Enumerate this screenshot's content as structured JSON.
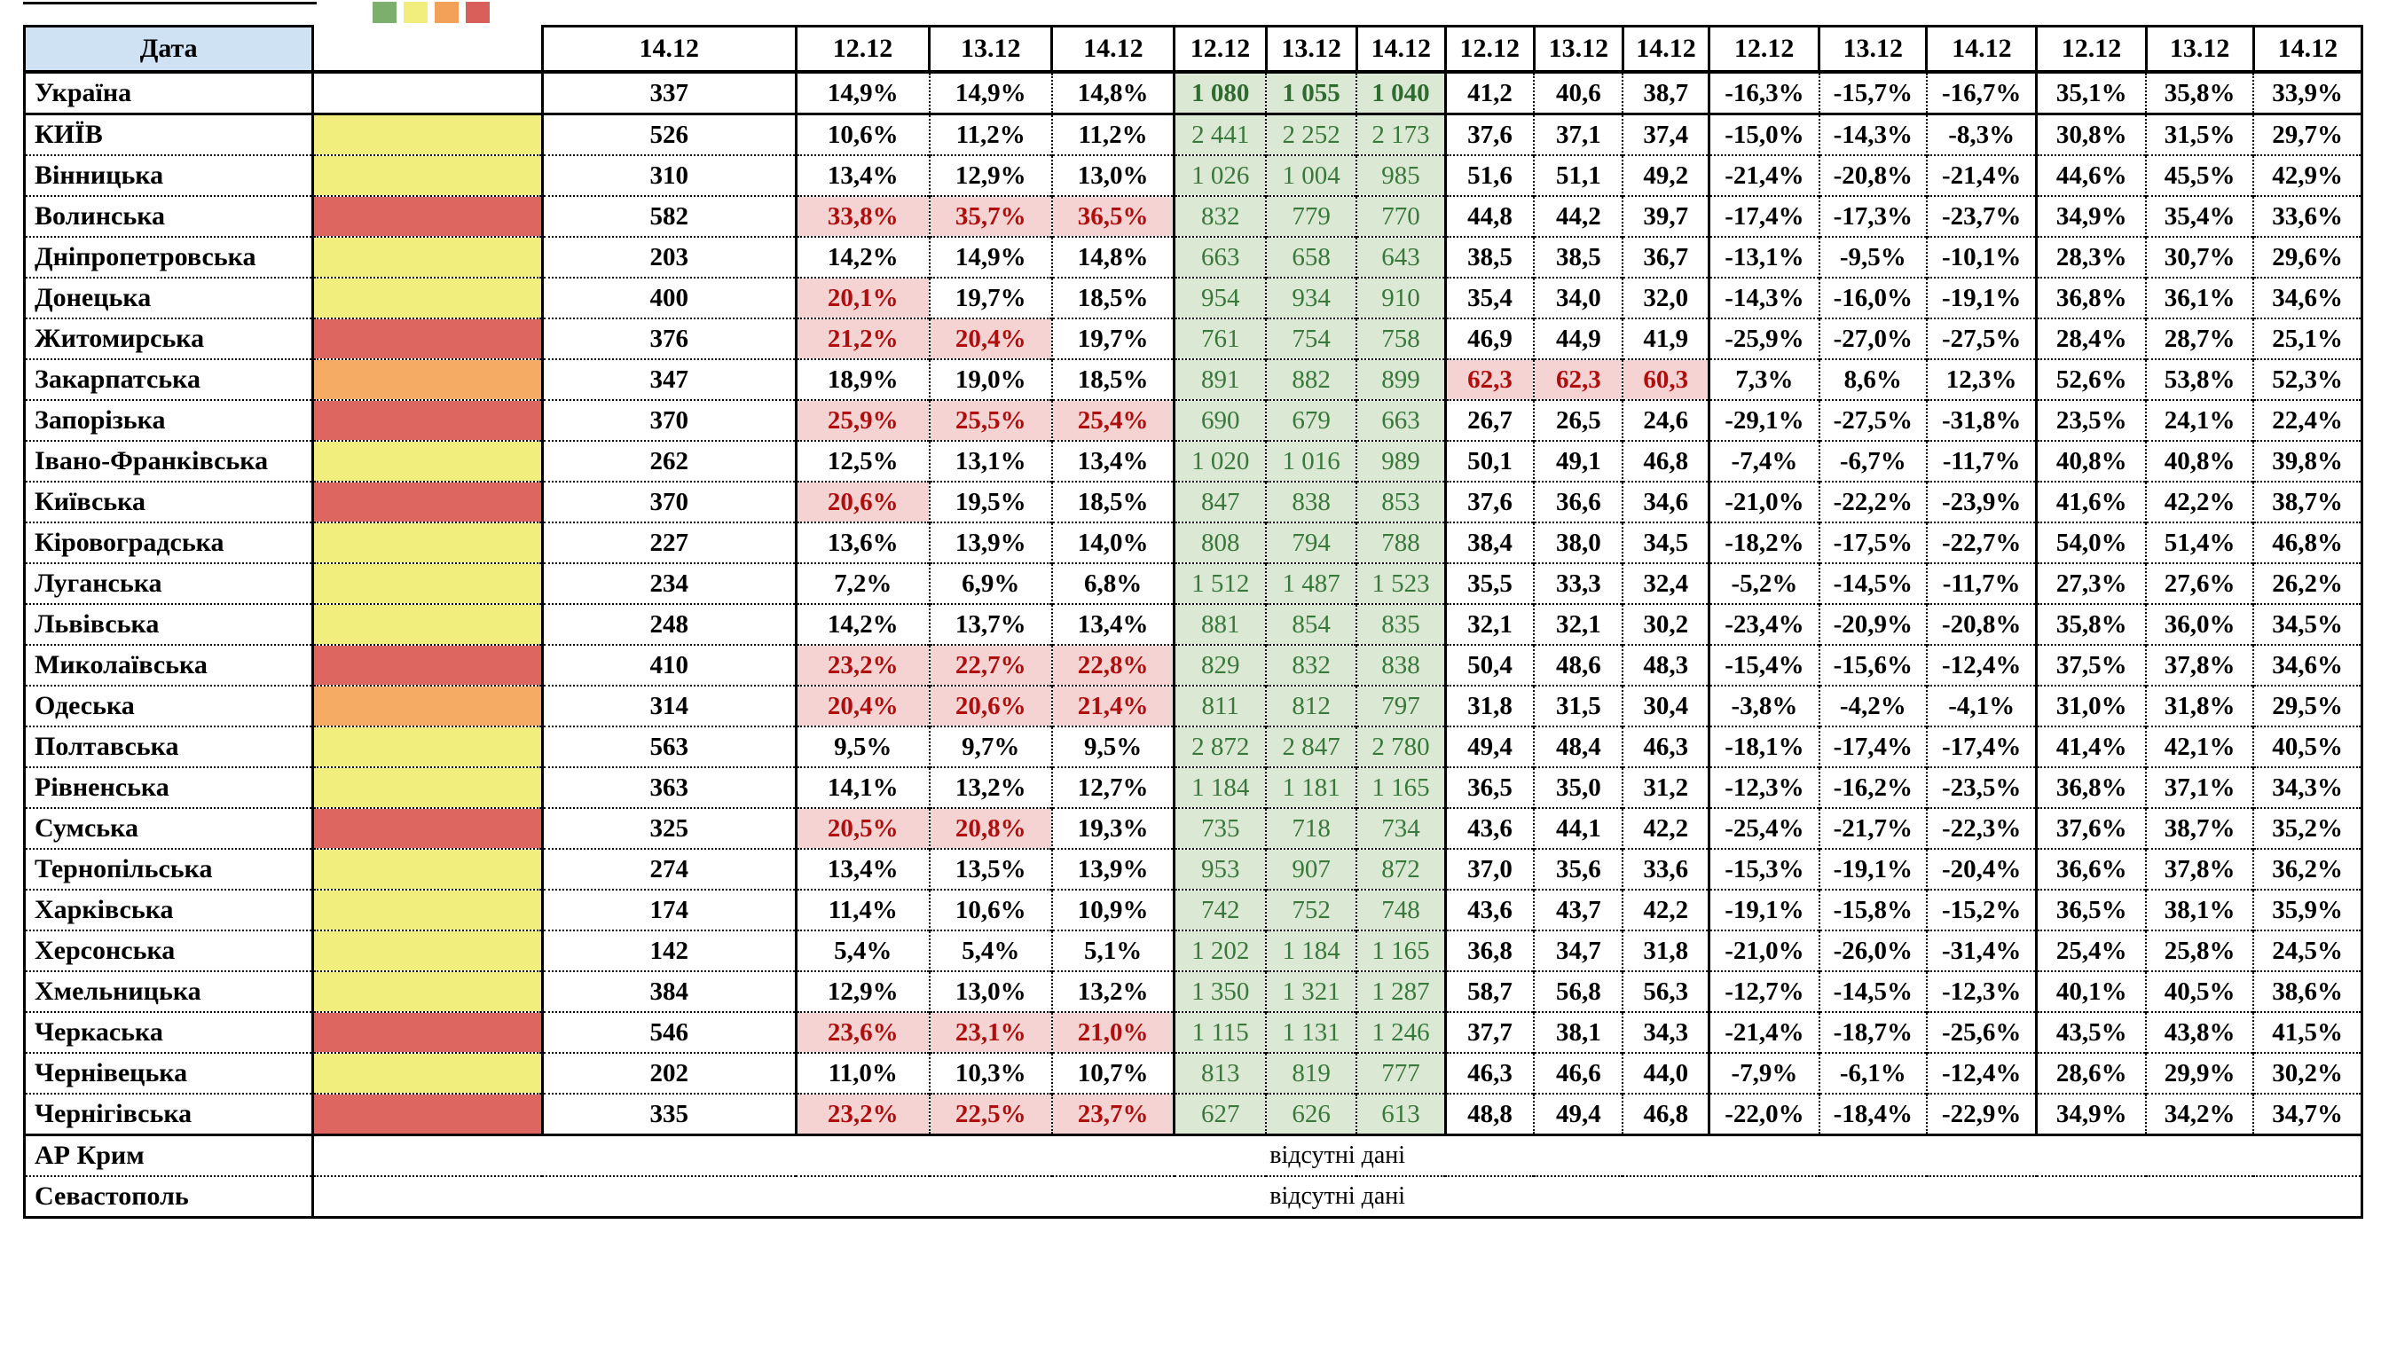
{
  "header": {
    "date_label": "Дата",
    "count_col_date": "14.12",
    "group_dates": [
      "12.12",
      "13.12",
      "14.12"
    ],
    "group_count": 5
  },
  "legend_colors": [
    "#7cae6d",
    "#f1ee7e",
    "#f3a058",
    "#d95f5a"
  ],
  "colors": {
    "none": "#ffffff",
    "yellow": "#f1ee7e",
    "orange": "#f5ab63",
    "red": "#dd6760",
    "green_bg": "#dbe8d4",
    "green_text": "#38783a",
    "pink_bg": "#f6d3d3",
    "pink_text": "#b00d0d",
    "header_blue": "#cfe2f3"
  },
  "no_data_text": "відсутні дані",
  "no_data_rows": [
    "АР Крим",
    "Севастополь"
  ],
  "rows": [
    {
      "name": "Україна",
      "ind": "none",
      "emph": true,
      "count": "337",
      "pct": [
        "14,9%",
        "14,9%",
        "14,8%"
      ],
      "pct_hl": [
        0,
        0,
        0
      ],
      "green": [
        "1 080",
        "1 055",
        "1 040"
      ],
      "num": [
        "41,2",
        "40,6",
        "38,7"
      ],
      "num_hl": [
        0,
        0,
        0
      ],
      "neg": [
        "-16,3%",
        "-15,7%",
        "-16,7%"
      ],
      "last": [
        "35,1%",
        "35,8%",
        "33,9%"
      ]
    },
    {
      "name": "КИЇВ",
      "ind": "yellow",
      "count": "526",
      "pct": [
        "10,6%",
        "11,2%",
        "11,2%"
      ],
      "pct_hl": [
        0,
        0,
        0
      ],
      "green": [
        "2 441",
        "2 252",
        "2 173"
      ],
      "num": [
        "37,6",
        "37,1",
        "37,4"
      ],
      "num_hl": [
        0,
        0,
        0
      ],
      "neg": [
        "-15,0%",
        "-14,3%",
        "-8,3%"
      ],
      "last": [
        "30,8%",
        "31,5%",
        "29,7%"
      ]
    },
    {
      "name": "Вінницька",
      "ind": "yellow",
      "count": "310",
      "pct": [
        "13,4%",
        "12,9%",
        "13,0%"
      ],
      "pct_hl": [
        0,
        0,
        0
      ],
      "green": [
        "1 026",
        "1 004",
        "985"
      ],
      "num": [
        "51,6",
        "51,1",
        "49,2"
      ],
      "num_hl": [
        0,
        0,
        0
      ],
      "neg": [
        "-21,4%",
        "-20,8%",
        "-21,4%"
      ],
      "last": [
        "44,6%",
        "45,5%",
        "42,9%"
      ]
    },
    {
      "name": "Волинська",
      "ind": "red",
      "count": "582",
      "pct": [
        "33,8%",
        "35,7%",
        "36,5%"
      ],
      "pct_hl": [
        1,
        1,
        1
      ],
      "green": [
        "832",
        "779",
        "770"
      ],
      "num": [
        "44,8",
        "44,2",
        "39,7"
      ],
      "num_hl": [
        0,
        0,
        0
      ],
      "neg": [
        "-17,4%",
        "-17,3%",
        "-23,7%"
      ],
      "last": [
        "34,9%",
        "35,4%",
        "33,6%"
      ]
    },
    {
      "name": "Дніпропетровська",
      "ind": "yellow",
      "count": "203",
      "pct": [
        "14,2%",
        "14,9%",
        "14,8%"
      ],
      "pct_hl": [
        0,
        0,
        0
      ],
      "green": [
        "663",
        "658",
        "643"
      ],
      "num": [
        "38,5",
        "38,5",
        "36,7"
      ],
      "num_hl": [
        0,
        0,
        0
      ],
      "neg": [
        "-13,1%",
        "-9,5%",
        "-10,1%"
      ],
      "last": [
        "28,3%",
        "30,7%",
        "29,6%"
      ]
    },
    {
      "name": "Донецька",
      "ind": "yellow",
      "count": "400",
      "pct": [
        "20,1%",
        "19,7%",
        "18,5%"
      ],
      "pct_hl": [
        1,
        0,
        0
      ],
      "green": [
        "954",
        "934",
        "910"
      ],
      "num": [
        "35,4",
        "34,0",
        "32,0"
      ],
      "num_hl": [
        0,
        0,
        0
      ],
      "neg": [
        "-14,3%",
        "-16,0%",
        "-19,1%"
      ],
      "last": [
        "36,8%",
        "36,1%",
        "34,6%"
      ]
    },
    {
      "name": "Житомирська",
      "ind": "red",
      "count": "376",
      "pct": [
        "21,2%",
        "20,4%",
        "19,7%"
      ],
      "pct_hl": [
        1,
        1,
        0
      ],
      "green": [
        "761",
        "754",
        "758"
      ],
      "num": [
        "46,9",
        "44,9",
        "41,9"
      ],
      "num_hl": [
        0,
        0,
        0
      ],
      "neg": [
        "-25,9%",
        "-27,0%",
        "-27,5%"
      ],
      "last": [
        "28,4%",
        "28,7%",
        "25,1%"
      ]
    },
    {
      "name": "Закарпатська",
      "ind": "orange",
      "count": "347",
      "pct": [
        "18,9%",
        "19,0%",
        "18,5%"
      ],
      "pct_hl": [
        0,
        0,
        0
      ],
      "green": [
        "891",
        "882",
        "899"
      ],
      "num": [
        "62,3",
        "62,3",
        "60,3"
      ],
      "num_hl": [
        1,
        1,
        1
      ],
      "neg": [
        "7,3%",
        "8,6%",
        "12,3%"
      ],
      "last": [
        "52,6%",
        "53,8%",
        "52,3%"
      ]
    },
    {
      "name": "Запорізька",
      "ind": "red",
      "count": "370",
      "pct": [
        "25,9%",
        "25,5%",
        "25,4%"
      ],
      "pct_hl": [
        1,
        1,
        1
      ],
      "green": [
        "690",
        "679",
        "663"
      ],
      "num": [
        "26,7",
        "26,5",
        "24,6"
      ],
      "num_hl": [
        0,
        0,
        0
      ],
      "neg": [
        "-29,1%",
        "-27,5%",
        "-31,8%"
      ],
      "last": [
        "23,5%",
        "24,1%",
        "22,4%"
      ]
    },
    {
      "name": "Івано-Франківська",
      "ind": "yellow",
      "count": "262",
      "pct": [
        "12,5%",
        "13,1%",
        "13,4%"
      ],
      "pct_hl": [
        0,
        0,
        0
      ],
      "green": [
        "1 020",
        "1 016",
        "989"
      ],
      "num": [
        "50,1",
        "49,1",
        "46,8"
      ],
      "num_hl": [
        0,
        0,
        0
      ],
      "neg": [
        "-7,4%",
        "-6,7%",
        "-11,7%"
      ],
      "last": [
        "40,8%",
        "40,8%",
        "39,8%"
      ]
    },
    {
      "name": "Київська",
      "ind": "red",
      "count": "370",
      "pct": [
        "20,6%",
        "19,5%",
        "18,5%"
      ],
      "pct_hl": [
        1,
        0,
        0
      ],
      "green": [
        "847",
        "838",
        "853"
      ],
      "num": [
        "37,6",
        "36,6",
        "34,6"
      ],
      "num_hl": [
        0,
        0,
        0
      ],
      "neg": [
        "-21,0%",
        "-22,2%",
        "-23,9%"
      ],
      "last": [
        "41,6%",
        "42,2%",
        "38,7%"
      ]
    },
    {
      "name": "Кіровоградська",
      "ind": "yellow",
      "count": "227",
      "pct": [
        "13,6%",
        "13,9%",
        "14,0%"
      ],
      "pct_hl": [
        0,
        0,
        0
      ],
      "green": [
        "808",
        "794",
        "788"
      ],
      "num": [
        "38,4",
        "38,0",
        "34,5"
      ],
      "num_hl": [
        0,
        0,
        0
      ],
      "neg": [
        "-18,2%",
        "-17,5%",
        "-22,7%"
      ],
      "last": [
        "54,0%",
        "51,4%",
        "46,8%"
      ]
    },
    {
      "name": "Луганська",
      "ind": "yellow",
      "count": "234",
      "pct": [
        "7,2%",
        "6,9%",
        "6,8%"
      ],
      "pct_hl": [
        0,
        0,
        0
      ],
      "green": [
        "1 512",
        "1 487",
        "1 523"
      ],
      "num": [
        "35,5",
        "33,3",
        "32,4"
      ],
      "num_hl": [
        0,
        0,
        0
      ],
      "neg": [
        "-5,2%",
        "-14,5%",
        "-11,7%"
      ],
      "last": [
        "27,3%",
        "27,6%",
        "26,2%"
      ]
    },
    {
      "name": "Львівська",
      "ind": "yellow",
      "count": "248",
      "pct": [
        "14,2%",
        "13,7%",
        "13,4%"
      ],
      "pct_hl": [
        0,
        0,
        0
      ],
      "green": [
        "881",
        "854",
        "835"
      ],
      "num": [
        "32,1",
        "32,1",
        "30,2"
      ],
      "num_hl": [
        0,
        0,
        0
      ],
      "neg": [
        "-23,4%",
        "-20,9%",
        "-20,8%"
      ],
      "last": [
        "35,8%",
        "36,0%",
        "34,5%"
      ]
    },
    {
      "name": "Миколаївська",
      "ind": "red",
      "count": "410",
      "pct": [
        "23,2%",
        "22,7%",
        "22,8%"
      ],
      "pct_hl": [
        1,
        1,
        1
      ],
      "green": [
        "829",
        "832",
        "838"
      ],
      "num": [
        "50,4",
        "48,6",
        "48,3"
      ],
      "num_hl": [
        0,
        0,
        0
      ],
      "neg": [
        "-15,4%",
        "-15,6%",
        "-12,4%"
      ],
      "last": [
        "37,5%",
        "37,8%",
        "34,6%"
      ]
    },
    {
      "name": "Одеська",
      "ind": "orange",
      "count": "314",
      "pct": [
        "20,4%",
        "20,6%",
        "21,4%"
      ],
      "pct_hl": [
        1,
        1,
        1
      ],
      "green": [
        "811",
        "812",
        "797"
      ],
      "num": [
        "31,8",
        "31,5",
        "30,4"
      ],
      "num_hl": [
        0,
        0,
        0
      ],
      "neg": [
        "-3,8%",
        "-4,2%",
        "-4,1%"
      ],
      "last": [
        "31,0%",
        "31,8%",
        "29,5%"
      ]
    },
    {
      "name": "Полтавська",
      "ind": "yellow",
      "count": "563",
      "pct": [
        "9,5%",
        "9,7%",
        "9,5%"
      ],
      "pct_hl": [
        0,
        0,
        0
      ],
      "green": [
        "2 872",
        "2 847",
        "2 780"
      ],
      "num": [
        "49,4",
        "48,4",
        "46,3"
      ],
      "num_hl": [
        0,
        0,
        0
      ],
      "neg": [
        "-18,1%",
        "-17,4%",
        "-17,4%"
      ],
      "last": [
        "41,4%",
        "42,1%",
        "40,5%"
      ]
    },
    {
      "name": "Рівненська",
      "ind": "yellow",
      "count": "363",
      "pct": [
        "14,1%",
        "13,2%",
        "12,7%"
      ],
      "pct_hl": [
        0,
        0,
        0
      ],
      "green": [
        "1 184",
        "1 181",
        "1 165"
      ],
      "num": [
        "36,5",
        "35,0",
        "31,2"
      ],
      "num_hl": [
        0,
        0,
        0
      ],
      "neg": [
        "-12,3%",
        "-16,2%",
        "-23,5%"
      ],
      "last": [
        "36,8%",
        "37,1%",
        "34,3%"
      ]
    },
    {
      "name": "Сумська",
      "ind": "red",
      "count": "325",
      "pct": [
        "20,5%",
        "20,8%",
        "19,3%"
      ],
      "pct_hl": [
        1,
        1,
        0
      ],
      "green": [
        "735",
        "718",
        "734"
      ],
      "num": [
        "43,6",
        "44,1",
        "42,2"
      ],
      "num_hl": [
        0,
        0,
        0
      ],
      "neg": [
        "-25,4%",
        "-21,7%",
        "-22,3%"
      ],
      "last": [
        "37,6%",
        "38,7%",
        "35,2%"
      ]
    },
    {
      "name": "Тернопільська",
      "ind": "yellow",
      "count": "274",
      "pct": [
        "13,4%",
        "13,5%",
        "13,9%"
      ],
      "pct_hl": [
        0,
        0,
        0
      ],
      "green": [
        "953",
        "907",
        "872"
      ],
      "num": [
        "37,0",
        "35,6",
        "33,6"
      ],
      "num_hl": [
        0,
        0,
        0
      ],
      "neg": [
        "-15,3%",
        "-19,1%",
        "-20,4%"
      ],
      "last": [
        "36,6%",
        "37,8%",
        "36,2%"
      ]
    },
    {
      "name": "Харківська",
      "ind": "yellow",
      "count": "174",
      "pct": [
        "11,4%",
        "10,6%",
        "10,9%"
      ],
      "pct_hl": [
        0,
        0,
        0
      ],
      "green": [
        "742",
        "752",
        "748"
      ],
      "num": [
        "43,6",
        "43,7",
        "42,2"
      ],
      "num_hl": [
        0,
        0,
        0
      ],
      "neg": [
        "-19,1%",
        "-15,8%",
        "-15,2%"
      ],
      "last": [
        "36,5%",
        "38,1%",
        "35,9%"
      ]
    },
    {
      "name": "Херсонська",
      "ind": "yellow",
      "count": "142",
      "pct": [
        "5,4%",
        "5,4%",
        "5,1%"
      ],
      "pct_hl": [
        0,
        0,
        0
      ],
      "green": [
        "1 202",
        "1 184",
        "1 165"
      ],
      "num": [
        "36,8",
        "34,7",
        "31,8"
      ],
      "num_hl": [
        0,
        0,
        0
      ],
      "neg": [
        "-21,0%",
        "-26,0%",
        "-31,4%"
      ],
      "last": [
        "25,4%",
        "25,8%",
        "24,5%"
      ]
    },
    {
      "name": "Хмельницька",
      "ind": "yellow",
      "count": "384",
      "pct": [
        "12,9%",
        "13,0%",
        "13,2%"
      ],
      "pct_hl": [
        0,
        0,
        0
      ],
      "green": [
        "1 350",
        "1 321",
        "1 287"
      ],
      "num": [
        "58,7",
        "56,8",
        "56,3"
      ],
      "num_hl": [
        0,
        0,
        0
      ],
      "neg": [
        "-12,7%",
        "-14,5%",
        "-12,3%"
      ],
      "last": [
        "40,1%",
        "40,5%",
        "38,6%"
      ]
    },
    {
      "name": "Черкаська",
      "ind": "red",
      "count": "546",
      "pct": [
        "23,6%",
        "23,1%",
        "21,0%"
      ],
      "pct_hl": [
        1,
        1,
        1
      ],
      "green": [
        "1 115",
        "1 131",
        "1 246"
      ],
      "num": [
        "37,7",
        "38,1",
        "34,3"
      ],
      "num_hl": [
        0,
        0,
        0
      ],
      "neg": [
        "-21,4%",
        "-18,7%",
        "-25,6%"
      ],
      "last": [
        "43,5%",
        "43,8%",
        "41,5%"
      ]
    },
    {
      "name": "Чернівецька",
      "ind": "yellow",
      "count": "202",
      "pct": [
        "11,0%",
        "10,3%",
        "10,7%"
      ],
      "pct_hl": [
        0,
        0,
        0
      ],
      "green": [
        "813",
        "819",
        "777"
      ],
      "num": [
        "46,3",
        "46,6",
        "44,0"
      ],
      "num_hl": [
        0,
        0,
        0
      ],
      "neg": [
        "-7,9%",
        "-6,1%",
        "-12,4%"
      ],
      "last": [
        "28,6%",
        "29,9%",
        "30,2%"
      ]
    },
    {
      "name": "Чернігівська",
      "ind": "red",
      "count": "335",
      "pct": [
        "23,2%",
        "22,5%",
        "23,7%"
      ],
      "pct_hl": [
        1,
        1,
        1
      ],
      "green": [
        "627",
        "626",
        "613"
      ],
      "num": [
        "48,8",
        "49,4",
        "46,8"
      ],
      "num_hl": [
        0,
        0,
        0
      ],
      "neg": [
        "-22,0%",
        "-18,4%",
        "-22,9%"
      ],
      "last": [
        "34,9%",
        "34,2%",
        "34,7%"
      ]
    }
  ]
}
